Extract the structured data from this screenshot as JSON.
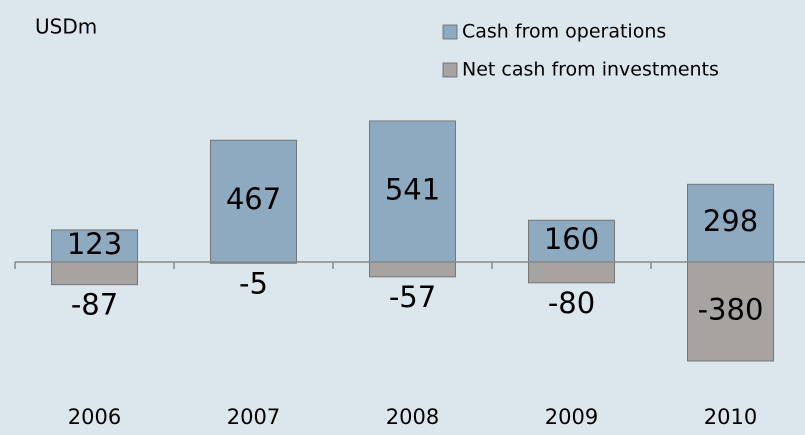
{
  "chart_data": {
    "type": "bar",
    "y_label": "USDm",
    "categories": [
      "2006",
      "2007",
      "2008",
      "2009",
      "2010"
    ],
    "series": [
      {
        "name": "Cash from operations",
        "color": "#8eaac1",
        "values": [
          123,
          467,
          541,
          160,
          298
        ]
      },
      {
        "name": "Net cash from investments",
        "color": "#a6a3a0",
        "values": [
          -87,
          -5,
          -57,
          -80,
          -380
        ]
      }
    ],
    "ylim": [
      -400,
      600
    ],
    "legend": "top-right"
  }
}
